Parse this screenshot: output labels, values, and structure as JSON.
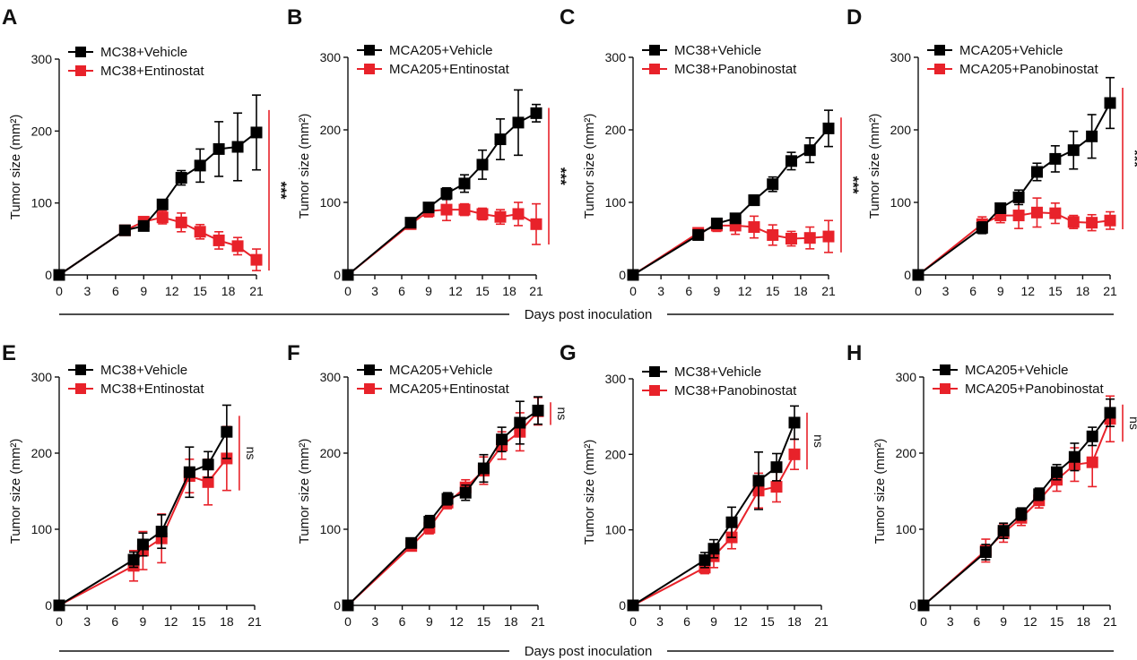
{
  "figure": {
    "shared_xlabel": "Days post inoculation",
    "colors": {
      "vehicle": "#000000",
      "treated": "#e8222a",
      "axis": "#111111"
    }
  },
  "chart_data": [
    {
      "panel": "A",
      "type": "line",
      "ylabel": "Tumor size (mm²)",
      "xlabel": "",
      "xlim": [
        0,
        21
      ],
      "ylim": [
        0,
        300
      ],
      "xticks": [
        0,
        3,
        6,
        9,
        12,
        15,
        18,
        21
      ],
      "yticks": [
        0,
        100,
        200,
        300
      ],
      "legend_position": "top-left",
      "significance": "***",
      "series": [
        {
          "name": "MC38+Vehicle",
          "color": "#000000",
          "x": [
            0,
            7,
            9,
            11,
            13,
            15,
            17,
            19,
            21
          ],
          "y": [
            0,
            62,
            68,
            98,
            135,
            152,
            175,
            178,
            198
          ],
          "err": [
            0,
            4,
            6,
            6,
            10,
            23,
            38,
            47,
            52
          ]
        },
        {
          "name": "MC38+Entinostat",
          "color": "#e8222a",
          "x": [
            0,
            7,
            9,
            11,
            13,
            15,
            17,
            19,
            21
          ],
          "y": [
            0,
            62,
            74,
            80,
            73,
            60,
            48,
            40,
            21
          ],
          "err": [
            0,
            4,
            6,
            9,
            13,
            10,
            12,
            12,
            15
          ]
        }
      ]
    },
    {
      "panel": "B",
      "type": "line",
      "ylabel": "Tumor size (mm²)",
      "xlabel": "",
      "xlim": [
        0,
        21
      ],
      "ylim": [
        0,
        300
      ],
      "xticks": [
        0,
        3,
        6,
        9,
        12,
        15,
        18,
        21
      ],
      "yticks": [
        0,
        100,
        200,
        300
      ],
      "legend_position": "top-left",
      "significance": "***",
      "series": [
        {
          "name": "MCA205+Vehicle",
          "color": "#000000",
          "x": [
            0,
            7,
            9,
            11,
            13,
            15,
            17,
            19,
            21
          ],
          "y": [
            0,
            72,
            93,
            112,
            126,
            152,
            187,
            210,
            223
          ],
          "err": [
            0,
            4,
            6,
            8,
            12,
            20,
            28,
            45,
            12
          ]
        },
        {
          "name": "MCA205+Entinostat",
          "color": "#e8222a",
          "x": [
            0,
            7,
            9,
            11,
            13,
            15,
            17,
            19,
            21
          ],
          "y": [
            0,
            70,
            88,
            90,
            90,
            84,
            80,
            84,
            70
          ],
          "err": [
            0,
            4,
            8,
            15,
            8,
            8,
            10,
            16,
            28
          ]
        }
      ]
    },
    {
      "panel": "C",
      "type": "line",
      "ylabel": "Tumor size (mm²)",
      "xlabel": "",
      "xlim": [
        0,
        21
      ],
      "ylim": [
        0,
        300
      ],
      "xticks": [
        0,
        3,
        6,
        9,
        12,
        15,
        18,
        21
      ],
      "yticks": [
        0,
        100,
        200,
        300
      ],
      "legend_position": "top-left",
      "significance": "***",
      "series": [
        {
          "name": "MC38+Vehicle",
          "color": "#000000",
          "x": [
            0,
            7,
            9,
            11,
            13,
            15,
            17,
            19,
            21
          ],
          "y": [
            0,
            55,
            71,
            78,
            103,
            125,
            157,
            172,
            202
          ],
          "err": [
            0,
            4,
            5,
            6,
            7,
            10,
            12,
            17,
            25
          ]
        },
        {
          "name": "MC38+Panobinostat",
          "color": "#e8222a",
          "x": [
            0,
            7,
            9,
            11,
            13,
            15,
            17,
            19,
            21
          ],
          "y": [
            0,
            58,
            68,
            68,
            66,
            55,
            50,
            51,
            53
          ],
          "err": [
            0,
            6,
            8,
            12,
            15,
            14,
            10,
            15,
            22
          ]
        }
      ]
    },
    {
      "panel": "D",
      "type": "line",
      "ylabel": "Tumor size (mm²)",
      "xlabel": "",
      "xlim": [
        0,
        21
      ],
      "ylim": [
        0,
        300
      ],
      "xticks": [
        0,
        3,
        6,
        9,
        12,
        15,
        18,
        21
      ],
      "yticks": [
        0,
        100,
        200,
        300
      ],
      "legend_position": "top-left",
      "significance": "***",
      "series": [
        {
          "name": "MCA205+Vehicle",
          "color": "#000000",
          "x": [
            0,
            7,
            9,
            11,
            13,
            15,
            17,
            19,
            21
          ],
          "y": [
            0,
            65,
            92,
            107,
            142,
            160,
            172,
            191,
            237
          ],
          "err": [
            0,
            8,
            6,
            10,
            12,
            18,
            26,
            30,
            35
          ]
        },
        {
          "name": "MCA205+Panobinostat",
          "color": "#e8222a",
          "x": [
            0,
            7,
            9,
            11,
            13,
            15,
            17,
            19,
            21
          ],
          "y": [
            0,
            70,
            82,
            82,
            86,
            85,
            73,
            72,
            75
          ],
          "err": [
            0,
            10,
            10,
            18,
            20,
            14,
            9,
            11,
            12
          ]
        }
      ]
    },
    {
      "panel": "E",
      "type": "line",
      "ylabel": "Tumor size (mm²)",
      "xlabel": "",
      "xlim": [
        0,
        21
      ],
      "ylim": [
        0,
        300
      ],
      "xticks": [
        0,
        3,
        6,
        9,
        12,
        15,
        18,
        21
      ],
      "yticks": [
        0,
        100,
        200,
        300
      ],
      "legend_position": "top-left",
      "significance": "ns",
      "series": [
        {
          "name": "MC38+Vehicle",
          "color": "#000000",
          "x": [
            0,
            8,
            9,
            11,
            14,
            16,
            18
          ],
          "y": [
            0,
            60,
            80,
            97,
            175,
            185,
            228
          ],
          "err": [
            0,
            10,
            15,
            22,
            33,
            17,
            35
          ]
        },
        {
          "name": "MC38+Entinostat",
          "color": "#e8222a",
          "x": [
            0,
            8,
            9,
            11,
            14,
            16,
            18
          ],
          "y": [
            0,
            52,
            72,
            88,
            170,
            162,
            193
          ],
          "err": [
            0,
            20,
            25,
            32,
            22,
            30,
            42
          ]
        }
      ]
    },
    {
      "panel": "F",
      "type": "line",
      "ylabel": "Tumor size (mm²)",
      "xlabel": "",
      "xlim": [
        0,
        21
      ],
      "ylim": [
        0,
        300
      ],
      "xticks": [
        0,
        3,
        6,
        9,
        12,
        15,
        18,
        21
      ],
      "yticks": [
        0,
        100,
        200,
        300
      ],
      "legend_position": "top-left",
      "significance": "ns",
      "series": [
        {
          "name": "MCA205+Vehicle",
          "color": "#000000",
          "x": [
            0,
            7,
            9,
            11,
            13,
            15,
            17,
            19,
            21
          ],
          "y": [
            0,
            82,
            110,
            140,
            148,
            180,
            218,
            240,
            256
          ],
          "err": [
            0,
            4,
            8,
            8,
            10,
            18,
            16,
            28,
            18
          ]
        },
        {
          "name": "MCA205+Entinostat",
          "color": "#e8222a",
          "x": [
            0,
            7,
            9,
            11,
            13,
            15,
            17,
            19,
            21
          ],
          "y": [
            0,
            78,
            102,
            135,
            155,
            177,
            210,
            228,
            255
          ],
          "err": [
            0,
            4,
            8,
            8,
            10,
            18,
            18,
            25,
            18
          ]
        }
      ]
    },
    {
      "panel": "G",
      "type": "line",
      "ylabel": "Tumor size (mm²)",
      "xlabel": "",
      "xlim": [
        0,
        21
      ],
      "ylim": [
        0,
        300
      ],
      "xticks": [
        0,
        3,
        6,
        9,
        12,
        15,
        18,
        21
      ],
      "yticks": [
        0,
        100,
        200,
        300
      ],
      "legend_position": "top-left",
      "significance": "ns",
      "series": [
        {
          "name": "MC38+Vehicle",
          "color": "#000000",
          "x": [
            0,
            8,
            9,
            11,
            14,
            16,
            18
          ],
          "y": [
            0,
            60,
            75,
            110,
            165,
            183,
            242
          ],
          "err": [
            0,
            10,
            12,
            20,
            38,
            18,
            22
          ]
        },
        {
          "name": "MC38+Panobinostat",
          "color": "#e8222a",
          "x": [
            0,
            8,
            9,
            11,
            14,
            16,
            18
          ],
          "y": [
            0,
            50,
            65,
            90,
            152,
            157,
            200
          ],
          "err": [
            0,
            8,
            15,
            15,
            23,
            20,
            20
          ]
        }
      ]
    },
    {
      "panel": "H",
      "type": "line",
      "ylabel": "Tumor size (mm²)",
      "xlabel": "",
      "xlim": [
        0,
        21
      ],
      "ylim": [
        0,
        300
      ],
      "xticks": [
        0,
        3,
        6,
        9,
        12,
        15,
        18,
        21
      ],
      "yticks": [
        0,
        100,
        200,
        300
      ],
      "legend_position": "top-left",
      "significance": "ns",
      "series": [
        {
          "name": "MCA205+Vehicle",
          "color": "#000000",
          "x": [
            0,
            7,
            9,
            11,
            13,
            15,
            17,
            19,
            21
          ],
          "y": [
            0,
            70,
            98,
            120,
            146,
            175,
            195,
            222,
            253
          ],
          "err": [
            0,
            10,
            10,
            8,
            8,
            10,
            18,
            12,
            18
          ]
        },
        {
          "name": "MCA205+Panobinostat",
          "color": "#e8222a",
          "x": [
            0,
            7,
            9,
            11,
            13,
            15,
            17,
            19,
            21
          ],
          "y": [
            0,
            72,
            95,
            115,
            138,
            165,
            185,
            188,
            245
          ],
          "err": [
            0,
            15,
            12,
            10,
            10,
            15,
            22,
            32,
            30
          ]
        }
      ]
    }
  ]
}
